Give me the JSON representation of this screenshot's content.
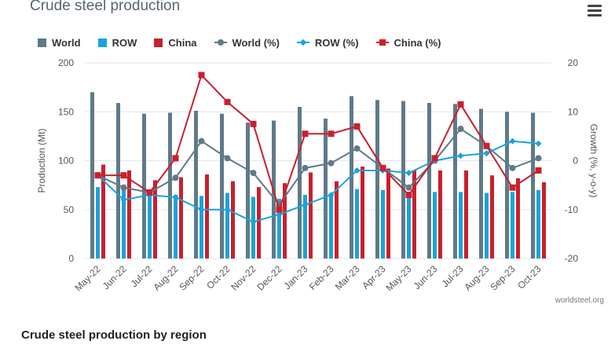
{
  "chart_data": {
    "type": "bar+line",
    "title": "Crude steel production",
    "categories": [
      "May-22",
      "Jun-22",
      "Jul-22",
      "Aug-22",
      "Sep-22",
      "Oct-22",
      "Nov-22",
      "Dec-22",
      "Jan-23",
      "Feb-23",
      "Mar-23",
      "Apr-23",
      "May-23",
      "Jun-23",
      "Jul-23",
      "Aug-23",
      "Sep-23",
      "Oct-23"
    ],
    "ylabel": "Production (Mt)",
    "ylim": [
      0,
      200
    ],
    "yticks": [
      0,
      50,
      100,
      150,
      200
    ],
    "y2label": "Growth (%, y-o-y)",
    "y2lim": [
      -20,
      20
    ],
    "y2ticks": [
      -20,
      -10,
      0,
      10,
      20
    ],
    "bar_series": [
      {
        "name": "World",
        "color": "#5f7a88",
        "values": [
          170,
          159,
          148,
          149,
          151,
          148,
          139,
          141,
          155,
          143,
          166,
          162,
          161,
          159,
          158,
          153,
          150,
          149
        ]
      },
      {
        "name": "ROW",
        "color": "#1aa3da",
        "values": [
          73,
          70,
          66,
          65,
          64,
          67,
          63,
          61,
          65,
          65,
          71,
          70,
          68,
          68,
          68,
          67,
          68,
          70
        ]
      },
      {
        "name": "China",
        "color": "#c8202f",
        "values": [
          96,
          90,
          80,
          83,
          86,
          79,
          73,
          77,
          88,
          79,
          94,
          92,
          90,
          90,
          90,
          85,
          82,
          78
        ]
      }
    ],
    "line_series": [
      {
        "name": "World (%)",
        "color": "#5f7a88",
        "marker": "circle",
        "values": [
          -3,
          -5.5,
          -6.5,
          -3.5,
          4,
          0.5,
          -2.5,
          -9,
          -1.5,
          -0.5,
          2.5,
          -1.5,
          -5.5,
          0,
          6.5,
          3,
          -1.5,
          0.5
        ]
      },
      {
        "name": "ROW (%)",
        "color": "#1aa3da",
        "marker": "diamond",
        "values": [
          -3,
          -8,
          -7,
          -7.5,
          -10,
          -10,
          -12.5,
          -11,
          -9,
          -7,
          -2,
          -2,
          -2.5,
          0,
          1,
          1.5,
          4,
          3.5
        ]
      },
      {
        "name": "China (%)",
        "color": "#c8202f",
        "marker": "square",
        "values": [
          -3,
          -3,
          -6.5,
          0.5,
          17.5,
          12,
          7.5,
          -10,
          5.5,
          5.5,
          7,
          -1.5,
          -7,
          0.5,
          11.5,
          3,
          -5.5,
          -2
        ]
      }
    ]
  },
  "legend": {
    "world": "World",
    "row": "ROW",
    "china": "China",
    "world_pct": "World (%)",
    "row_pct": "ROW (%)",
    "china_pct": "China (%)"
  },
  "colors": {
    "world": "#5f7a88",
    "row": "#1aa3da",
    "china": "#c8202f"
  },
  "menu_icon": "hamburger-menu-icon",
  "credit": "worldsteel.org",
  "section_heading": "Crude steel production by region"
}
